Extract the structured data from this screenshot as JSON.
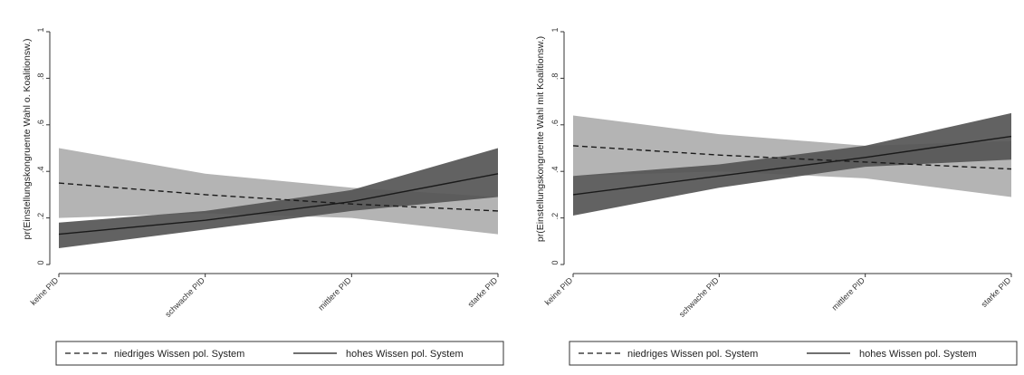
{
  "chart_data": [
    {
      "type": "line",
      "ylabel": "pr(Einstellungskongruente Wahl o. Koalitionsw.)",
      "categories": [
        "keine PID",
        "schwache PID",
        "mittlere PID",
        "starke PID"
      ],
      "y_ticks": [
        "0",
        ".2",
        ".4",
        ".6",
        ".8",
        "1"
      ],
      "ylim": [
        0,
        1
      ],
      "series": [
        {
          "name": "niedriges Wissen pol. System",
          "style": "dashed",
          "band_color": "#b4b4b4",
          "values": [
            0.35,
            0.3,
            0.26,
            0.23
          ],
          "lower": [
            0.2,
            0.22,
            0.2,
            0.13
          ],
          "upper": [
            0.5,
            0.39,
            0.33,
            0.29
          ]
        },
        {
          "name": "hohes Wissen pol. System",
          "style": "solid",
          "band_color": "#555555",
          "values": [
            0.13,
            0.19,
            0.27,
            0.39
          ],
          "lower": [
            0.07,
            0.15,
            0.23,
            0.29
          ],
          "upper": [
            0.18,
            0.23,
            0.32,
            0.5
          ]
        }
      ]
    },
    {
      "type": "line",
      "ylabel": "pr(Einstellungskongruente Wahl mit Koalitionsw.)",
      "categories": [
        "keine PID",
        "schwache PID",
        "mittlere PID",
        "starke PID"
      ],
      "y_ticks": [
        "0",
        ".2",
        ".4",
        ".6",
        ".8",
        "1"
      ],
      "ylim": [
        0,
        1
      ],
      "series": [
        {
          "name": "niedriges Wissen pol. System",
          "style": "dashed",
          "band_color": "#b4b4b4",
          "values": [
            0.51,
            0.47,
            0.44,
            0.41
          ],
          "lower": [
            0.38,
            0.4,
            0.37,
            0.29
          ],
          "upper": [
            0.64,
            0.56,
            0.51,
            0.53
          ]
        },
        {
          "name": "hohes Wissen pol. System",
          "style": "solid",
          "band_color": "#555555",
          "values": [
            0.3,
            0.38,
            0.46,
            0.55
          ],
          "lower": [
            0.21,
            0.33,
            0.42,
            0.45
          ],
          "upper": [
            0.38,
            0.43,
            0.51,
            0.65
          ]
        }
      ]
    }
  ]
}
